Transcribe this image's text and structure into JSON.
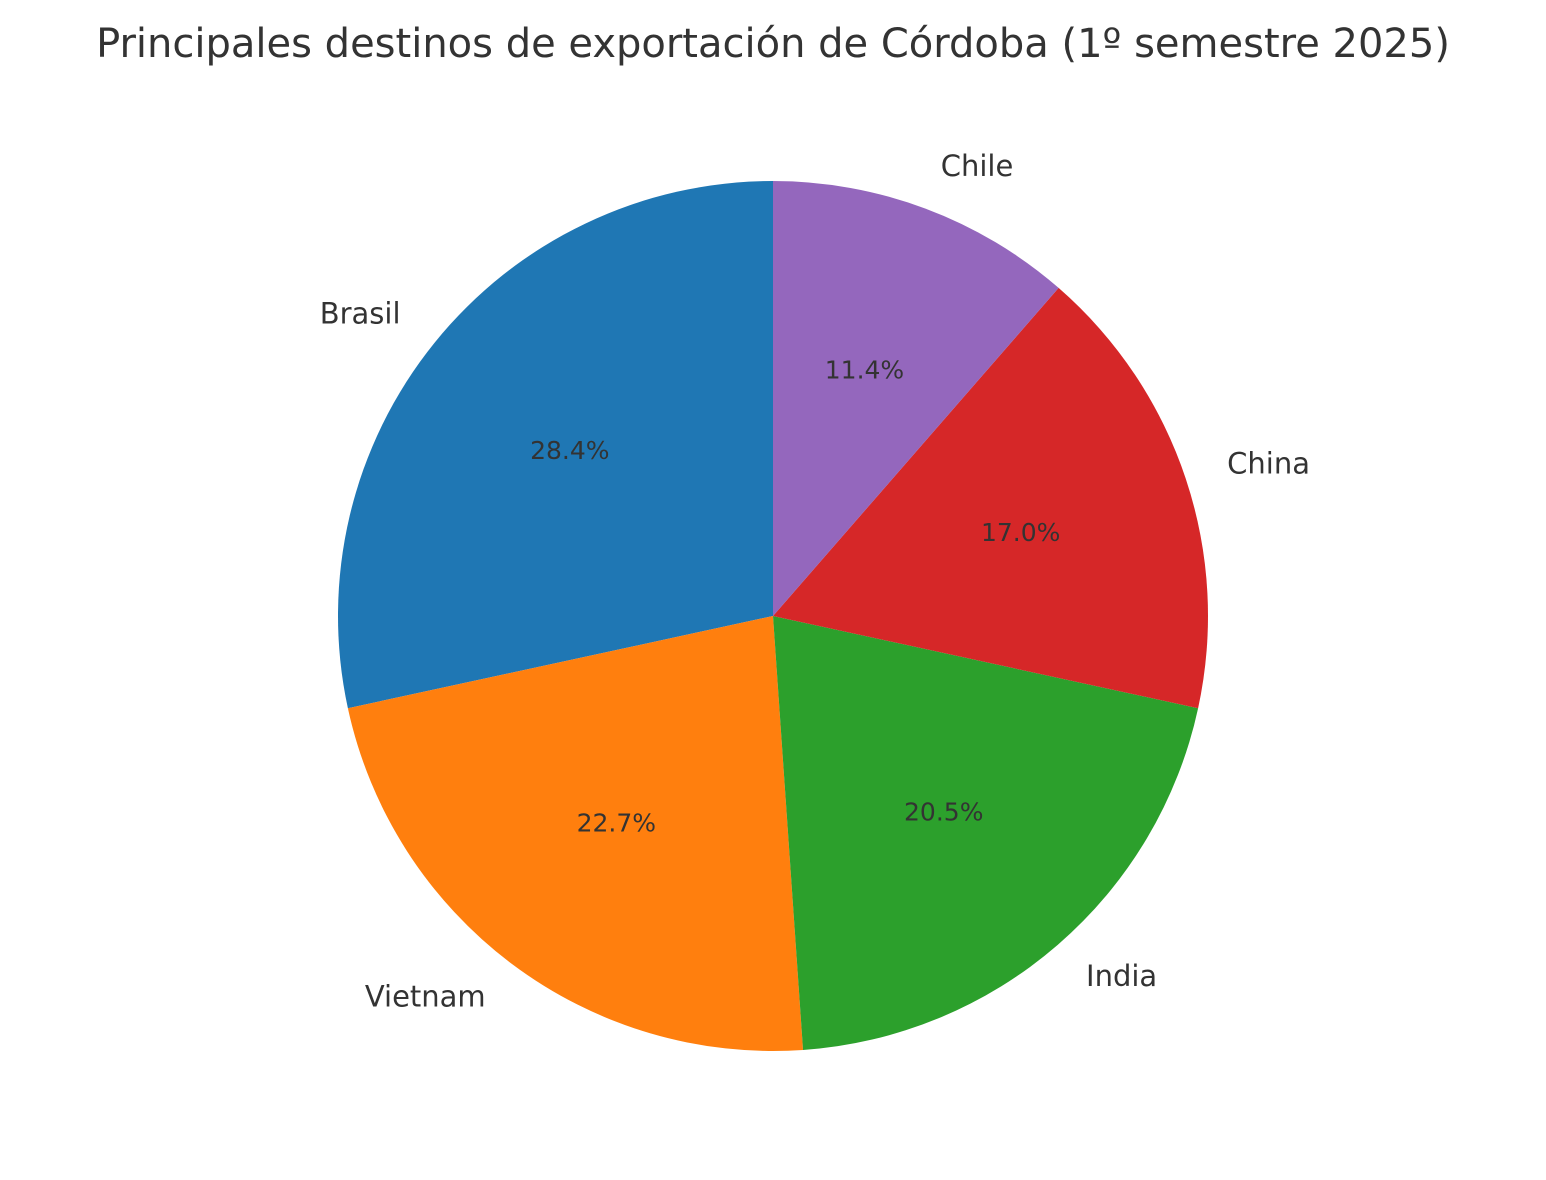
{
  "chart_data": {
    "type": "pie",
    "title": "Principales destinos de exportación de Córdoba (1º semestre 2025)",
    "start_angle_deg": 90,
    "direction": "counterclockwise",
    "slices": [
      {
        "label": "Brasil",
        "value": 28.4,
        "pct_label": "28.4%",
        "color": "#1f77b4"
      },
      {
        "label": "Vietnam",
        "value": 22.7,
        "pct_label": "22.7%",
        "color": "#ff7f0e"
      },
      {
        "label": "India",
        "value": 20.5,
        "pct_label": "20.5%",
        "color": "#2ca02c"
      },
      {
        "label": "China",
        "value": 17.0,
        "pct_label": "17.0%",
        "color": "#d62728"
      },
      {
        "label": "Chile",
        "value": 11.4,
        "pct_label": "11.4%",
        "color": "#9467bd"
      }
    ]
  }
}
